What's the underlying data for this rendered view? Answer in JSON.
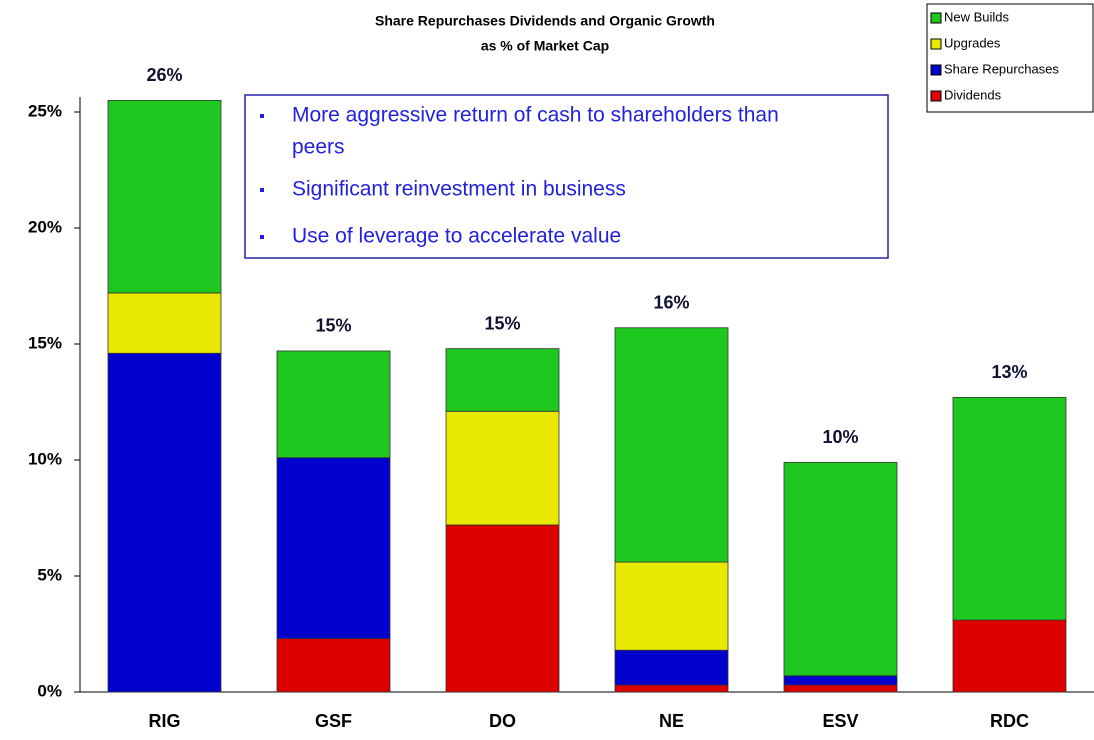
{
  "chart_data": {
    "type": "stacked_bar",
    "title": [
      "Share Repurchases Dividends and Organic Growth",
      "as % of Market Cap"
    ],
    "categories": [
      "RIG",
      "GSF",
      "DO",
      "NE",
      "ESV",
      "RDC"
    ],
    "series": [
      {
        "name": "Dividends",
        "color": "#dd0000",
        "values": [
          0,
          2.3,
          7.2,
          0.3,
          0.3,
          3.1
        ]
      },
      {
        "name": "Share Repurchases",
        "color": "#0000cc",
        "values": [
          14.6,
          7.8,
          0,
          1.5,
          0.4,
          0
        ]
      },
      {
        "name": "Upgrades",
        "color": "#e8e800",
        "values": [
          2.6,
          0,
          4.9,
          3.8,
          0,
          0
        ]
      },
      {
        "name": "New Builds",
        "color": "#1ec81e",
        "values": [
          8.3,
          4.6,
          2.7,
          10.1,
          9.2,
          9.6
        ]
      }
    ],
    "totals": [
      25.5,
      14.7,
      14.8,
      15.7,
      9.9,
      12.7
    ],
    "total_labels": [
      "26%",
      "15%",
      "15%",
      "16%",
      "10%",
      "13%"
    ],
    "ylim": [
      0,
      25
    ],
    "yticks": [
      {
        "value": 0,
        "label": "0%"
      },
      {
        "value": 5,
        "label": "5%"
      },
      {
        "value": 10,
        "label": "10%"
      },
      {
        "value": 15,
        "label": "15%"
      },
      {
        "value": 20,
        "label": "20%"
      },
      {
        "value": 25,
        "label": "25%"
      }
    ],
    "legend": "top-right",
    "annotations": [
      "More aggressive return of cash to shareholders than",
      "peers",
      "Significant reinvestment in business",
      "Use of leverage to accelerate value"
    ]
  }
}
